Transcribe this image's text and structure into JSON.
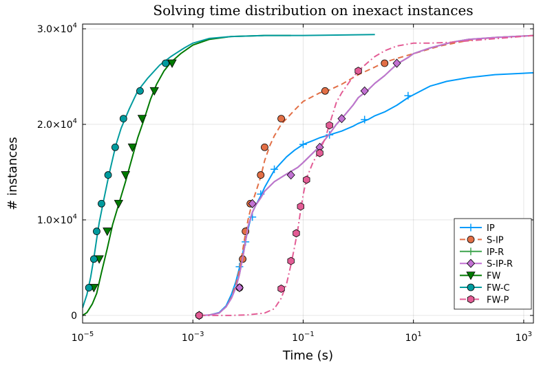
{
  "chart_data": {
    "type": "line",
    "title": "Solving time distribution on inexact instances",
    "xlabel": "Time (s)",
    "ylabel": "# instances",
    "x_scale": "log10",
    "xlim": [
      1e-05,
      1500
    ],
    "ylim": [
      -800,
      30500
    ],
    "x_ticks": [
      {
        "value": 1e-05,
        "base": "10",
        "exp": "−5"
      },
      {
        "value": 0.001,
        "base": "10",
        "exp": "−3"
      },
      {
        "value": 0.1,
        "base": "10",
        "exp": "−1"
      },
      {
        "value": 10,
        "base": "10",
        "exp": "1"
      },
      {
        "value": 1000,
        "base": "10",
        "exp": "3"
      }
    ],
    "y_ticks": [
      {
        "value": 0,
        "label": "0"
      },
      {
        "value": 10000,
        "mantissa": "1.0×10",
        "exp": "4"
      },
      {
        "value": 20000,
        "mantissa": "2.0×10",
        "exp": "4"
      },
      {
        "value": 30000,
        "mantissa": "3.0×10",
        "exp": "4"
      }
    ],
    "grid": true,
    "legend_position": "bottom-right",
    "series": [
      {
        "name": "IP",
        "color": "#009AFA",
        "dash": "solid",
        "marker": "cross",
        "points": [
          [
            0.0013,
            0
          ],
          [
            0.002,
            50
          ],
          [
            0.003,
            300
          ],
          [
            0.004,
            1000
          ],
          [
            0.005,
            2200
          ],
          [
            0.006,
            3500
          ],
          [
            0.007,
            5000
          ],
          [
            0.008,
            6500
          ],
          [
            0.009,
            7800
          ],
          [
            0.01,
            9000
          ],
          [
            0.011,
            10000
          ],
          [
            0.012,
            10800
          ],
          [
            0.014,
            11600
          ],
          [
            0.017,
            12500
          ],
          [
            0.02,
            13400
          ],
          [
            0.025,
            14400
          ],
          [
            0.03,
            15200
          ],
          [
            0.04,
            16000
          ],
          [
            0.05,
            16600
          ],
          [
            0.07,
            17300
          ],
          [
            0.1,
            17900
          ],
          [
            0.15,
            18300
          ],
          [
            0.2,
            18600
          ],
          [
            0.3,
            18900
          ],
          [
            0.5,
            19300
          ],
          [
            0.8,
            19800
          ],
          [
            1,
            20100
          ],
          [
            1.5,
            20500
          ],
          [
            2,
            20900
          ],
          [
            3,
            21300
          ],
          [
            5,
            22000
          ],
          [
            8,
            22800
          ],
          [
            10,
            23100
          ],
          [
            20,
            24000
          ],
          [
            40,
            24500
          ],
          [
            100,
            24900
          ],
          [
            300,
            25200
          ],
          [
            1500,
            25400
          ]
        ],
        "markers": [
          [
            0.007,
            5100
          ],
          [
            0.009,
            7700
          ],
          [
            0.012,
            10300
          ],
          [
            0.017,
            12700
          ],
          [
            0.03,
            15300
          ],
          [
            0.1,
            17900
          ],
          [
            0.3,
            18900
          ],
          [
            1.3,
            20500
          ],
          [
            8,
            23000
          ]
        ]
      },
      {
        "name": "S-IP",
        "color": "#E26F46",
        "dash": "dashed",
        "marker": "circle",
        "points": [
          [
            0.0013,
            0
          ],
          [
            0.002,
            50
          ],
          [
            0.003,
            250
          ],
          [
            0.004,
            900
          ],
          [
            0.005,
            1900
          ],
          [
            0.006,
            3200
          ],
          [
            0.007,
            4800
          ],
          [
            0.008,
            6800
          ],
          [
            0.009,
            8600
          ],
          [
            0.01,
            10000
          ],
          [
            0.011,
            11000
          ],
          [
            0.012,
            11800
          ],
          [
            0.014,
            13000
          ],
          [
            0.017,
            14500
          ],
          [
            0.02,
            16200
          ],
          [
            0.025,
            17800
          ],
          [
            0.03,
            18800
          ],
          [
            0.04,
            20000
          ],
          [
            0.05,
            20600
          ],
          [
            0.07,
            21500
          ],
          [
            0.1,
            22400
          ],
          [
            0.2,
            23300
          ],
          [
            0.3,
            23600
          ],
          [
            0.5,
            24200
          ],
          [
            1,
            25200
          ],
          [
            2,
            26000
          ],
          [
            3,
            26500
          ],
          [
            5,
            26900
          ],
          [
            10,
            27400
          ],
          [
            30,
            28200
          ],
          [
            100,
            28800
          ],
          [
            300,
            29100
          ],
          [
            1500,
            29300
          ]
        ],
        "markers": [
          [
            0.0013,
            0
          ],
          [
            0.007,
            2900
          ],
          [
            0.008,
            5900
          ],
          [
            0.009,
            8800
          ],
          [
            0.011,
            11700
          ],
          [
            0.017,
            14700
          ],
          [
            0.02,
            17600
          ],
          [
            0.04,
            20600
          ],
          [
            0.25,
            23500
          ],
          [
            3,
            26400
          ]
        ]
      },
      {
        "name": "IP-R",
        "color": "#3DA44D",
        "dash": "solid",
        "marker": "cross",
        "points": [
          [
            0.0013,
            0
          ],
          [
            0.002,
            40
          ],
          [
            0.003,
            250
          ],
          [
            0.004,
            900
          ],
          [
            0.005,
            1800
          ],
          [
            0.006,
            2900
          ],
          [
            0.007,
            4300
          ],
          [
            0.008,
            6000
          ],
          [
            0.009,
            7700
          ],
          [
            0.01,
            9300
          ],
          [
            0.012,
            10800
          ],
          [
            0.014,
            11600
          ],
          [
            0.017,
            12300
          ],
          [
            0.02,
            13000
          ],
          [
            0.03,
            14000
          ],
          [
            0.05,
            14800
          ],
          [
            0.08,
            15500
          ],
          [
            0.1,
            16000
          ],
          [
            0.15,
            17000
          ],
          [
            0.2,
            17700
          ],
          [
            0.3,
            19000
          ],
          [
            0.4,
            20000
          ],
          [
            0.5,
            20600
          ],
          [
            0.8,
            22000
          ],
          [
            1,
            22800
          ],
          [
            1.5,
            23600
          ],
          [
            2,
            24300
          ],
          [
            3,
            25100
          ],
          [
            5,
            26300
          ],
          [
            8,
            27000
          ],
          [
            10,
            27400
          ],
          [
            20,
            28000
          ],
          [
            50,
            28600
          ],
          [
            100,
            28900
          ],
          [
            300,
            29100
          ],
          [
            1500,
            29300
          ]
        ],
        "markers": [
          [
            0.0013,
            0
          ],
          [
            0.007,
            2900
          ],
          [
            0.012,
            11700
          ],
          [
            0.06,
            14700
          ],
          [
            0.2,
            17600
          ],
          [
            0.5,
            20600
          ],
          [
            1.3,
            23500
          ],
          [
            5,
            26400
          ]
        ]
      },
      {
        "name": "S-IP-R",
        "color": "#C271D2",
        "dash": "solid",
        "marker": "diamond",
        "points": [
          [
            0.0013,
            0
          ],
          [
            0.002,
            40
          ],
          [
            0.003,
            250
          ],
          [
            0.004,
            900
          ],
          [
            0.005,
            1800
          ],
          [
            0.006,
            2900
          ],
          [
            0.007,
            4300
          ],
          [
            0.008,
            6000
          ],
          [
            0.009,
            7700
          ],
          [
            0.01,
            9300
          ],
          [
            0.012,
            10800
          ],
          [
            0.014,
            11600
          ],
          [
            0.017,
            12300
          ],
          [
            0.02,
            13000
          ],
          [
            0.03,
            14000
          ],
          [
            0.05,
            14800
          ],
          [
            0.08,
            15500
          ],
          [
            0.1,
            16000
          ],
          [
            0.15,
            17000
          ],
          [
            0.2,
            17700
          ],
          [
            0.3,
            19000
          ],
          [
            0.4,
            20000
          ],
          [
            0.5,
            20600
          ],
          [
            0.8,
            22000
          ],
          [
            1,
            22800
          ],
          [
            1.5,
            23600
          ],
          [
            2,
            24300
          ],
          [
            3,
            25100
          ],
          [
            5,
            26300
          ],
          [
            8,
            27000
          ],
          [
            10,
            27400
          ],
          [
            20,
            28000
          ],
          [
            50,
            28600
          ],
          [
            100,
            28900
          ],
          [
            300,
            29100
          ],
          [
            1500,
            29300
          ]
        ],
        "markers": [
          [
            0.0013,
            0
          ],
          [
            0.007,
            2900
          ],
          [
            0.012,
            11700
          ],
          [
            0.06,
            14700
          ],
          [
            0.2,
            17600
          ],
          [
            0.5,
            20600
          ],
          [
            1.3,
            23500
          ],
          [
            5,
            26400
          ]
        ]
      },
      {
        "name": "FW",
        "color": "#007A00",
        "dash": "solid",
        "marker": "triangle-down",
        "points": [
          [
            1e-05,
            0
          ],
          [
            1.2e-05,
            300
          ],
          [
            1.5e-05,
            1200
          ],
          [
            1.8e-05,
            2300
          ],
          [
            2.2e-05,
            4500
          ],
          [
            2.8e-05,
            7000
          ],
          [
            3.5e-05,
            9500
          ],
          [
            4.5e-05,
            11600
          ],
          [
            6e-05,
            14000
          ],
          [
            8e-05,
            16600
          ],
          [
            0.0001,
            18600
          ],
          [
            0.00013,
            20500
          ],
          [
            0.00017,
            22600
          ],
          [
            0.00022,
            24200
          ],
          [
            0.0003,
            25600
          ],
          [
            0.0004,
            26500
          ],
          [
            0.0006,
            27400
          ],
          [
            0.001,
            28300
          ],
          [
            0.002,
            28900
          ],
          [
            0.005,
            29200
          ],
          [
            0.02,
            29300
          ],
          [
            0.06,
            29300
          ]
        ],
        "markers": [
          [
            1.6e-05,
            2900
          ],
          [
            2e-05,
            5900
          ],
          [
            2.8e-05,
            8800
          ],
          [
            4.5e-05,
            11700
          ],
          [
            6e-05,
            14700
          ],
          [
            8e-05,
            17600
          ],
          [
            0.00012,
            20600
          ],
          [
            0.0002,
            23500
          ],
          [
            0.00042,
            26400
          ]
        ]
      },
      {
        "name": "FW-C",
        "color": "#009B9E",
        "dash": "solid",
        "marker": "circle",
        "points": [
          [
            1e-05,
            800
          ],
          [
            1.2e-05,
            2200
          ],
          [
            1.4e-05,
            4000
          ],
          [
            1.6e-05,
            6000
          ],
          [
            1.8e-05,
            8000
          ],
          [
            2e-05,
            9700
          ],
          [
            2.4e-05,
            12000
          ],
          [
            3e-05,
            14700
          ],
          [
            4e-05,
            17800
          ],
          [
            5e-05,
            19600
          ],
          [
            7e-05,
            21600
          ],
          [
            0.0001,
            23500
          ],
          [
            0.00015,
            24800
          ],
          [
            0.00025,
            26200
          ],
          [
            0.0004,
            27100
          ],
          [
            0.0007,
            28000
          ],
          [
            0.001,
            28500
          ],
          [
            0.002,
            29000
          ],
          [
            0.005,
            29200
          ],
          [
            0.02,
            29300
          ],
          [
            0.1,
            29300
          ],
          [
            2,
            29400
          ]
        ],
        "markers": [
          [
            1.3e-05,
            2900
          ],
          [
            1.6e-05,
            5900
          ],
          [
            1.8e-05,
            8800
          ],
          [
            2.2e-05,
            11700
          ],
          [
            2.9e-05,
            14700
          ],
          [
            3.9e-05,
            17600
          ],
          [
            5.5e-05,
            20600
          ],
          [
            0.00011,
            23500
          ],
          [
            0.00032,
            26400
          ]
        ]
      },
      {
        "name": "FW-P",
        "color": "#E35C95",
        "dash": "dash-dot",
        "marker": "hexagon",
        "points": [
          [
            0.0013,
            0
          ],
          [
            0.005,
            0
          ],
          [
            0.01,
            60
          ],
          [
            0.02,
            250
          ],
          [
            0.03,
            700
          ],
          [
            0.04,
            1800
          ],
          [
            0.05,
            3300
          ],
          [
            0.06,
            5300
          ],
          [
            0.07,
            7200
          ],
          [
            0.08,
            9000
          ],
          [
            0.09,
            11000
          ],
          [
            0.1,
            12600
          ],
          [
            0.11,
            13800
          ],
          [
            0.12,
            14600
          ],
          [
            0.15,
            16000
          ],
          [
            0.2,
            17300
          ],
          [
            0.25,
            18500
          ],
          [
            0.3,
            20000
          ],
          [
            0.4,
            22300
          ],
          [
            0.5,
            23300
          ],
          [
            0.7,
            24500
          ],
          [
            1,
            25600
          ],
          [
            1.5,
            26500
          ],
          [
            2,
            27100
          ],
          [
            3,
            27700
          ],
          [
            5,
            28200
          ],
          [
            10,
            28500
          ],
          [
            20,
            28500
          ],
          [
            50,
            28600
          ],
          [
            1500,
            29300
          ]
        ],
        "markers": [
          [
            0.0013,
            0
          ],
          [
            0.04,
            2800
          ],
          [
            0.06,
            5700
          ],
          [
            0.075,
            8600
          ],
          [
            0.09,
            11400
          ],
          [
            0.115,
            14200
          ],
          [
            0.2,
            17000
          ],
          [
            0.3,
            19900
          ],
          [
            1,
            25600
          ]
        ]
      }
    ]
  }
}
